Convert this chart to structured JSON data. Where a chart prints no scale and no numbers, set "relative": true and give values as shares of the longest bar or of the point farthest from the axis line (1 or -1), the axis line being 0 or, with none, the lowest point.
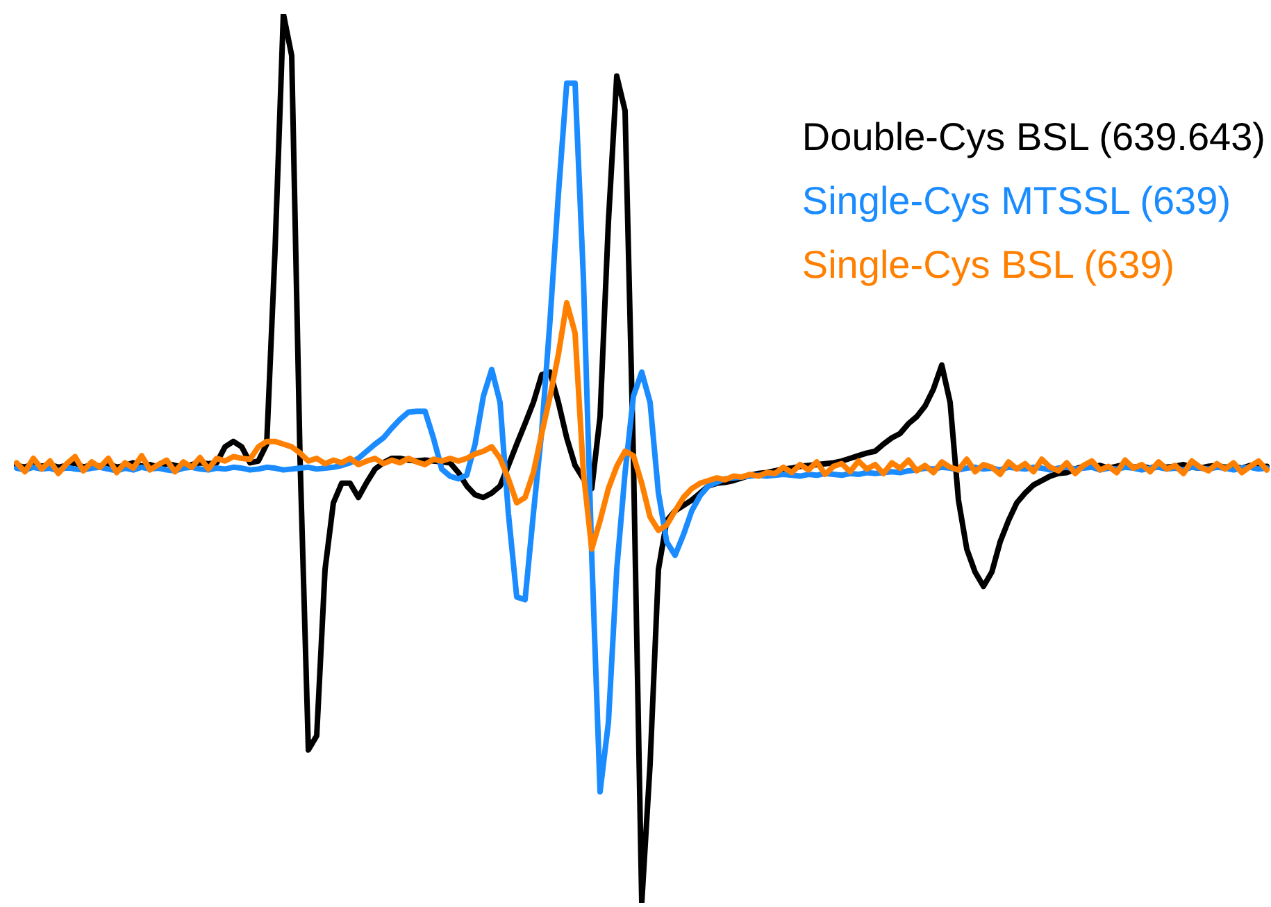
{
  "chart_data": {
    "type": "line",
    "relative": true,
    "legend": "top right",
    "marker": "none",
    "line_style": "solid",
    "categories": [
      null,
      null,
      null,
      null,
      null,
      null,
      null,
      null,
      null,
      null,
      null,
      null,
      null,
      null,
      null,
      null,
      null,
      null,
      null,
      null,
      null,
      null,
      null,
      null,
      null,
      null,
      null,
      null,
      null,
      null,
      null,
      null,
      null,
      null,
      null,
      null,
      null,
      null,
      null,
      null,
      null,
      null,
      null,
      null,
      null,
      null,
      null,
      null,
      null,
      null,
      null,
      null,
      null,
      null,
      null,
      null,
      null,
      null,
      null,
      null,
      null,
      null,
      null,
      null,
      null,
      null,
      null,
      null,
      null,
      null,
      null,
      null,
      null,
      null,
      null,
      null,
      null,
      null,
      null,
      null,
      null,
      null,
      null,
      null,
      null,
      null,
      null,
      null,
      null,
      null,
      null,
      null,
      null,
      null,
      null,
      null,
      null,
      null,
      null,
      null,
      null,
      null,
      null,
      null,
      null,
      null,
      null,
      null,
      null,
      null,
      null,
      null,
      null,
      null,
      null,
      null,
      null,
      null,
      null,
      null,
      null,
      null,
      null,
      null,
      null,
      null,
      null,
      null,
      null,
      null,
      null,
      null,
      null,
      null,
      null,
      null,
      null,
      null,
      null,
      null,
      null,
      null,
      null,
      null,
      null,
      null,
      null,
      null,
      null,
      null,
      null
    ],
    "series": [
      {
        "name": "Double-Cys BSL (639.643)",
        "color": "#000000",
        "values": [
          0.492,
          0.49,
          0.494,
          0.491,
          0.493,
          0.49,
          0.492,
          0.495,
          0.49,
          0.493,
          0.491,
          0.494,
          0.49,
          0.492,
          0.495,
          0.491,
          0.493,
          0.49,
          0.494,
          0.492,
          0.49,
          0.493,
          0.495,
          0.494,
          0.495,
          0.513,
          0.519,
          0.513,
          0.495,
          0.497,
          0.516,
          0.734,
          1,
          0.953,
          0.5,
          0.172,
          0.188,
          0.375,
          0.45,
          0.472,
          0.472,
          0.456,
          0.473,
          0.488,
          0.495,
          0.5,
          0.5,
          0.498,
          0.497,
          0.498,
          0.497,
          0.496,
          0.495,
          0.484,
          0.469,
          0.459,
          0.456,
          0.461,
          0.469,
          0.492,
          0.516,
          0.539,
          0.563,
          0.594,
          0.597,
          0.563,
          0.523,
          0.492,
          0.477,
          0.466,
          0.547,
          0.766,
          0.93,
          0.891,
          0.5,
          0,
          0.156,
          0.375,
          0.43,
          0.441,
          0.447,
          0.453,
          0.461,
          0.469,
          0.472,
          0.473,
          0.475,
          0.478,
          0.481,
          0.483,
          0.484,
          0.486,
          0.488,
          0.489,
          0.491,
          0.492,
          0.493,
          0.494,
          0.495,
          0.497,
          0.5,
          0.503,
          0.506,
          0.508,
          0.516,
          0.523,
          0.528,
          0.539,
          0.547,
          0.559,
          0.578,
          0.605,
          0.563,
          0.453,
          0.398,
          0.372,
          0.356,
          0.372,
          0.406,
          0.43,
          0.45,
          0.461,
          0.47,
          0.475,
          0.48,
          0.483,
          0.484,
          0.488,
          0.491,
          0.49,
          0.492,
          0.489,
          0.491,
          0.493,
          0.49,
          0.491,
          0.489,
          0.492,
          0.49,
          0.491,
          0.493,
          0.49,
          0.489,
          0.491,
          0.492,
          0.49,
          0.491,
          0.489,
          0.492,
          0.49,
          0.491
        ]
      },
      {
        "name": "Single-Cys MTSSL (639)",
        "color": "#1a8cff",
        "values": [
          0.489,
          0.487,
          0.49,
          0.488,
          0.489,
          0.486,
          0.49,
          0.488,
          0.487,
          0.489,
          0.49,
          0.488,
          0.486,
          0.489,
          0.487,
          0.49,
          0.488,
          0.489,
          0.487,
          0.486,
          0.489,
          0.49,
          0.488,
          0.487,
          0.489,
          0.488,
          0.49,
          0.489,
          0.487,
          0.488,
          0.49,
          0.489,
          0.487,
          0.488,
          0.489,
          0.49,
          0.488,
          0.489,
          0.49,
          0.492,
          0.495,
          0.5,
          0.508,
          0.516,
          0.523,
          0.534,
          0.544,
          0.552,
          0.553,
          0.553,
          0.523,
          0.488,
          0.48,
          0.477,
          0.481,
          0.516,
          0.57,
          0.6,
          0.563,
          0.438,
          0.344,
          0.341,
          0.438,
          0.531,
          0.656,
          0.797,
          0.922,
          0.922,
          0.703,
          0.391,
          0.125,
          0.203,
          0.375,
          0.484,
          0.57,
          0.597,
          0.563,
          0.461,
          0.406,
          0.391,
          0.414,
          0.441,
          0.458,
          0.469,
          0.473,
          0.477,
          0.478,
          0.479,
          0.48,
          0.481,
          0.48,
          0.481,
          0.482,
          0.481,
          0.48,
          0.482,
          0.481,
          0.483,
          0.482,
          0.481,
          0.483,
          0.482,
          0.484,
          0.483,
          0.484,
          0.485,
          0.484,
          0.486,
          0.487,
          0.489,
          0.488,
          0.49,
          0.489,
          0.487,
          0.489,
          0.49,
          0.488,
          0.489,
          0.487,
          0.49,
          0.489,
          0.488,
          0.49,
          0.489,
          0.487,
          0.489,
          0.49,
          0.488,
          0.489,
          0.49,
          0.487,
          0.489,
          0.488,
          0.49,
          0.489,
          0.487,
          0.489,
          0.49,
          0.488,
          0.489,
          0.487,
          0.49,
          0.489,
          0.488,
          0.49,
          0.489,
          0.487,
          0.489,
          0.49,
          0.488,
          0.489
        ]
      },
      {
        "name": "Single-Cys BSL (639)",
        "color": "#ff8000",
        "values": [
          0.495,
          0.485,
          0.5,
          0.488,
          0.497,
          0.483,
          0.494,
          0.502,
          0.486,
          0.496,
          0.49,
          0.5,
          0.484,
          0.495,
          0.489,
          0.503,
          0.487,
          0.493,
          0.498,
          0.485,
          0.496,
          0.49,
          0.501,
          0.488,
          0.5,
          0.497,
          0.502,
          0.5,
          0.499,
          0.513,
          0.519,
          0.519,
          0.516,
          0.513,
          0.506,
          0.497,
          0.5,
          0.494,
          0.498,
          0.495,
          0.5,
          0.493,
          0.497,
          0.5,
          0.494,
          0.498,
          0.495,
          0.5,
          0.496,
          0.493,
          0.499,
          0.497,
          0.5,
          0.497,
          0.5,
          0.505,
          0.508,
          0.513,
          0.5,
          0.477,
          0.45,
          0.456,
          0.484,
          0.528,
          0.57,
          0.617,
          0.675,
          0.641,
          0.484,
          0.398,
          0.43,
          0.466,
          0.491,
          0.508,
          0.503,
          0.472,
          0.434,
          0.419,
          0.425,
          0.441,
          0.456,
          0.466,
          0.472,
          0.475,
          0.478,
          0.476,
          0.48,
          0.479,
          0.482,
          0.48,
          0.484,
          0.483,
          0.49,
          0.484,
          0.493,
          0.487,
          0.496,
          0.482,
          0.491,
          0.494,
          0.485,
          0.497,
          0.488,
          0.493,
          0.483,
          0.495,
          0.489,
          0.498,
          0.486,
          0.492,
          0.484,
          0.496,
          0.49,
          0.487,
          0.499,
          0.485,
          0.493,
          0.49,
          0.482,
          0.496,
          0.488,
          0.494,
          0.485,
          0.499,
          0.49,
          0.486,
          0.495,
          0.483,
          0.492,
          0.497,
          0.487,
          0.491,
          0.484,
          0.498,
          0.489,
          0.493,
          0.485,
          0.496,
          0.488,
          0.492,
          0.483,
          0.497,
          0.49,
          0.486,
          0.494,
          0.488,
          0.495,
          0.484,
          0.491,
          0.497,
          0.487
        ]
      }
    ]
  }
}
